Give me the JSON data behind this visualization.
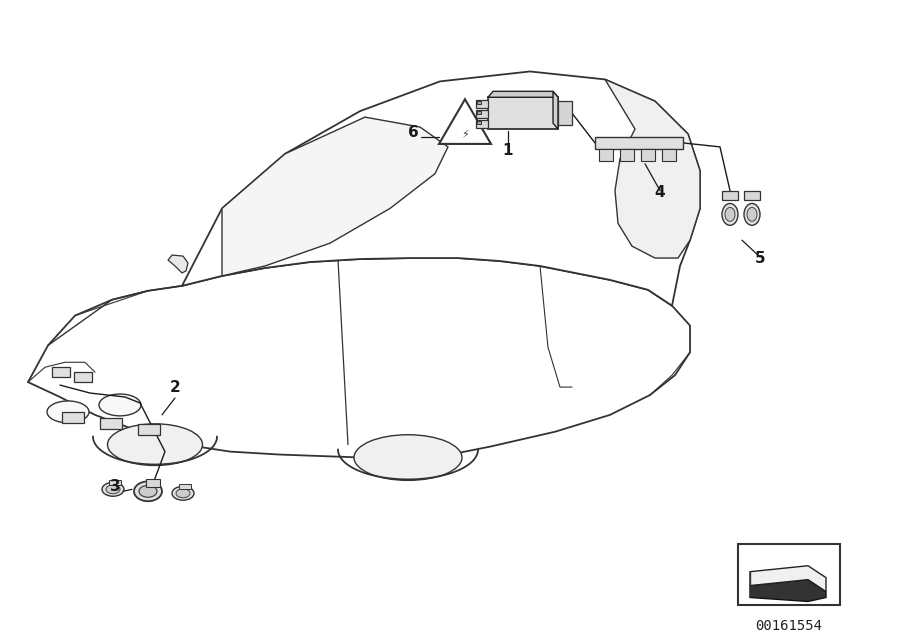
{
  "bg_color": "#ffffff",
  "line_color": "#1a1a1a",
  "outline_color": "#2a2a2a",
  "fig_width": 9.0,
  "fig_height": 6.36,
  "dpi": 100,
  "part_number": "00161554",
  "car_body_color": "#ffffff",
  "car_edge_color": "#333333",
  "component_face": "#e8e8e8",
  "component_edge": "#222222"
}
